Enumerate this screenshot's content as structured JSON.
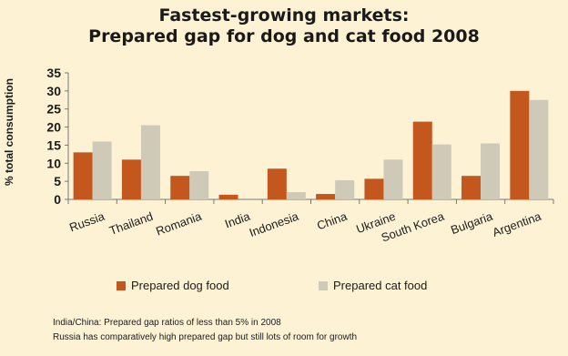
{
  "chart_data": {
    "type": "bar",
    "title": "Fastest-growing markets:",
    "subtitle": "Prepared gap for dog and cat food 2008",
    "ylabel": "% total consumption",
    "ylim": [
      0,
      35
    ],
    "yticks": [
      0,
      5,
      10,
      15,
      20,
      25,
      30,
      35
    ],
    "categories": [
      "Russia",
      "Thailand",
      "Romania",
      "India",
      "Indonesia",
      "China",
      "Ukraine",
      "South Korea",
      "Bulgaria",
      "Argentina"
    ],
    "series": [
      {
        "name": "Prepared dog food",
        "color": "#c4571d",
        "values": [
          13,
          11,
          6.5,
          1.3,
          8.5,
          1.5,
          5.7,
          21.5,
          6.5,
          30
        ]
      },
      {
        "name": "Prepared cat food",
        "color": "#cfcab8",
        "values": [
          16,
          20.5,
          7.8,
          0,
          2,
          5.3,
          11,
          15.2,
          15.5,
          27.5
        ]
      }
    ],
    "grid": false,
    "legend": "bottom"
  },
  "notes": [
    "India/China: Prepared gap ratios of less than 5% in 2008",
    "Russia has comparatively high prepared gap but still lots of room for growth"
  ]
}
